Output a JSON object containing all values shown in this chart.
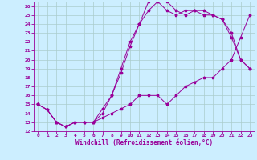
{
  "xlabel": "Windchill (Refroidissement éolien,°C)",
  "bg_color": "#cceeff",
  "line_color": "#990099",
  "grid_color": "#aacccc",
  "xlim": [
    -0.5,
    23.5
  ],
  "ylim": [
    12,
    26.5
  ],
  "xticks": [
    0,
    1,
    2,
    3,
    4,
    5,
    6,
    7,
    8,
    9,
    10,
    11,
    12,
    13,
    14,
    15,
    16,
    17,
    18,
    19,
    20,
    21,
    22,
    23
  ],
  "yticks": [
    12,
    13,
    14,
    15,
    16,
    17,
    18,
    19,
    20,
    21,
    22,
    23,
    24,
    25,
    26
  ],
  "line1_x": [
    0,
    1,
    2,
    3,
    4,
    5,
    6,
    7,
    8,
    9,
    10,
    11,
    12,
    13,
    14,
    15,
    16,
    17,
    18,
    19,
    20,
    21,
    22,
    23
  ],
  "line1_y": [
    15,
    14.4,
    13,
    12.5,
    13,
    13,
    13,
    13.5,
    14,
    14.5,
    15,
    16,
    16,
    16,
    15,
    16,
    17,
    17.5,
    18,
    18,
    19,
    20,
    22.5,
    25
  ],
  "line2_x": [
    0,
    1,
    2,
    3,
    4,
    5,
    6,
    7,
    8,
    9,
    10,
    11,
    12,
    13,
    14,
    15,
    16,
    17,
    18,
    19,
    20,
    21,
    22,
    23
  ],
  "line2_y": [
    15,
    14.4,
    13,
    12.5,
    13,
    13,
    13,
    14,
    16,
    18.5,
    21.5,
    24,
    25.5,
    26.5,
    26.5,
    25.5,
    25,
    25.5,
    25.5,
    25,
    24.5,
    22.5,
    20,
    19
  ],
  "line3_x": [
    0,
    1,
    2,
    3,
    4,
    5,
    6,
    7,
    8,
    9,
    10,
    11,
    12,
    13,
    14,
    15,
    16,
    17,
    18,
    19,
    20,
    21,
    22,
    23
  ],
  "line3_y": [
    15,
    14.4,
    13,
    12.5,
    13,
    13,
    13,
    14.5,
    16,
    19,
    22,
    24,
    26.5,
    26.5,
    25.5,
    25,
    25.5,
    25.5,
    25,
    25,
    24.5,
    23,
    20,
    19
  ],
  "tick_fontsize": 4.5,
  "xlabel_fontsize": 5.5
}
